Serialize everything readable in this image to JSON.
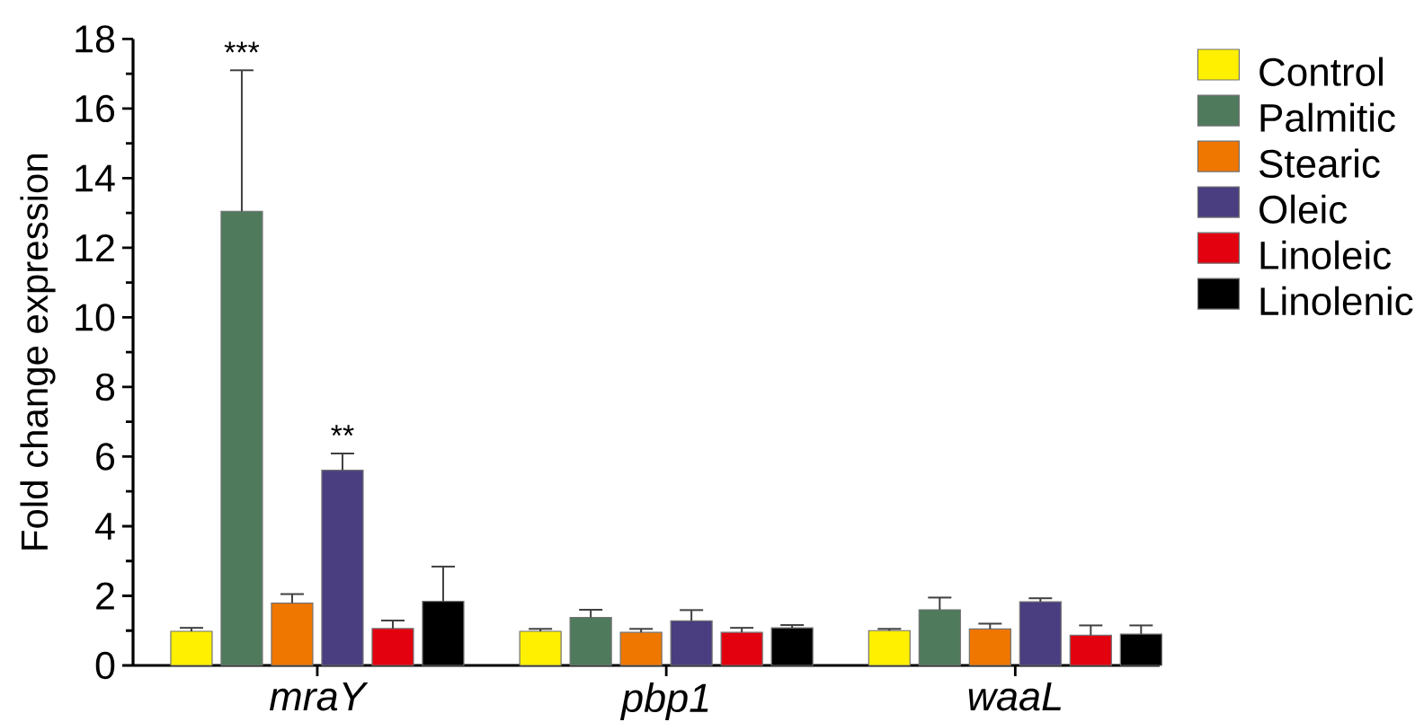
{
  "chart_data": {
    "type": "bar",
    "ylabel": "Fold change expression",
    "categories": [
      "mraY",
      "pbp1",
      "waaL"
    ],
    "series": [
      {
        "name": "Control",
        "color": "#fff000",
        "values": [
          0.98,
          0.98,
          1.0
        ],
        "errors": [
          [
            0.98,
            1.08
          ],
          [
            0.98,
            1.05
          ],
          [
            1.0,
            1.05
          ]
        ]
      },
      {
        "name": "Palmitic",
        "color": "#4f7a5c",
        "values": [
          13.05,
          1.38,
          1.6
        ],
        "errors": [
          [
            13.05,
            17.1
          ],
          [
            1.38,
            1.6
          ],
          [
            1.6,
            1.95
          ]
        ]
      },
      {
        "name": "Stearic",
        "color": "#ef7700",
        "values": [
          1.79,
          0.95,
          1.05
        ],
        "errors": [
          [
            1.79,
            2.05
          ],
          [
            0.95,
            1.05
          ],
          [
            1.05,
            1.2
          ]
        ]
      },
      {
        "name": "Oleic",
        "color": "#4a3d80",
        "values": [
          5.61,
          1.28,
          1.83
        ],
        "errors": [
          [
            5.61,
            6.09
          ],
          [
            1.28,
            1.59
          ],
          [
            1.83,
            1.93
          ]
        ]
      },
      {
        "name": "Linoleic",
        "color": "#e3000f",
        "values": [
          1.06,
          0.95,
          0.87
        ],
        "errors": [
          [
            1.06,
            1.29
          ],
          [
            0.95,
            1.08
          ],
          [
            0.87,
            1.15
          ]
        ]
      },
      {
        "name": "Linolenic",
        "color": "#000000",
        "values": [
          1.84,
          1.08,
          0.9
        ],
        "errors": [
          [
            1.84,
            2.84
          ],
          [
            1.08,
            1.16
          ],
          [
            0.9,
            1.15
          ]
        ]
      }
    ],
    "ylim": [
      0,
      18
    ],
    "yticks": [
      0,
      {
        "value": 1,
        "label": null
      },
      2,
      {
        "value": 3,
        "label": null
      },
      4,
      {
        "value": 5,
        "label": null
      },
      6,
      {
        "value": 7,
        "label": null
      },
      8,
      {
        "value": 9,
        "label": null
      },
      10,
      {
        "value": 11,
        "label": null
      },
      12,
      {
        "value": 13,
        "label": null
      },
      14,
      {
        "value": 15,
        "label": null
      },
      16,
      {
        "value": 17,
        "label": null
      },
      18
    ],
    "legend": "top right",
    "annotations": [
      "***",
      "**"
    ]
  }
}
